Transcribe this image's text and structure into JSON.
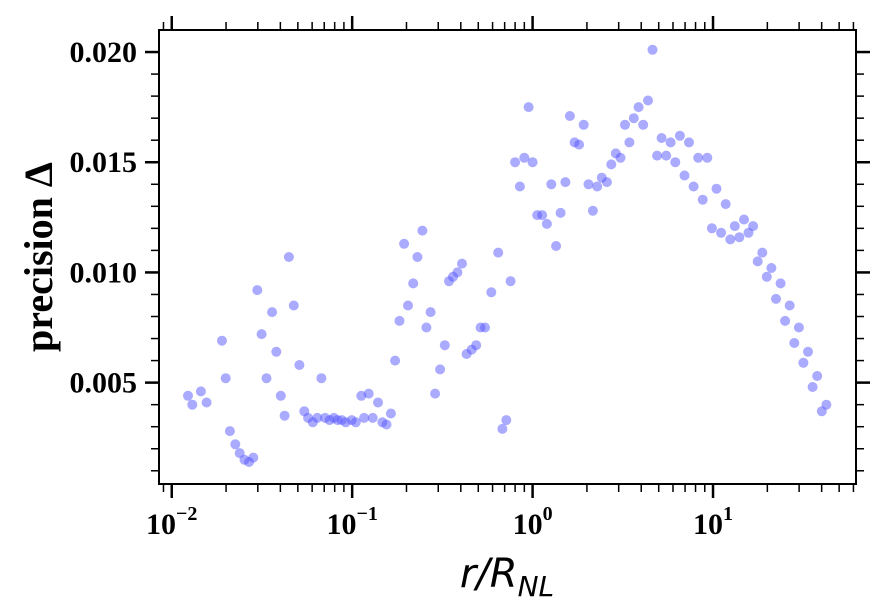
{
  "chart_data": {
    "type": "scatter",
    "xscale": "log",
    "xlim": [
      0.0085,
      62
    ],
    "ylim": [
      0.0004,
      0.021
    ],
    "grid": false,
    "legend": "none",
    "marker_color": "#5555ff",
    "marker_alpha": 0.5,
    "xlabel": {
      "main": "r/R",
      "sub": "NL"
    },
    "ylabel": "precision Δ",
    "x_ticks": [
      {
        "value": 0.01,
        "base": "10",
        "exp": "−2"
      },
      {
        "value": 0.1,
        "base": "10",
        "exp": "−1"
      },
      {
        "value": 1,
        "base": "10",
        "exp": "0"
      },
      {
        "value": 10,
        "base": "10",
        "exp": "1"
      }
    ],
    "y_ticks": [
      {
        "value": 0.005,
        "label": "0.005"
      },
      {
        "value": 0.01,
        "label": "0.010"
      },
      {
        "value": 0.015,
        "label": "0.015"
      },
      {
        "value": 0.02,
        "label": "0.020"
      }
    ],
    "points": [
      [
        0.0123,
        0.0044
      ],
      [
        0.013,
        0.004
      ],
      [
        0.0145,
        0.0046
      ],
      [
        0.0156,
        0.0041
      ],
      [
        0.019,
        0.0069
      ],
      [
        0.0199,
        0.0052
      ],
      [
        0.021,
        0.0028
      ],
      [
        0.0225,
        0.0022
      ],
      [
        0.0238,
        0.0018
      ],
      [
        0.0253,
        0.0015
      ],
      [
        0.0268,
        0.0014
      ],
      [
        0.0283,
        0.0016
      ],
      [
        0.0298,
        0.0092
      ],
      [
        0.0315,
        0.0072
      ],
      [
        0.0335,
        0.0052
      ],
      [
        0.036,
        0.0082
      ],
      [
        0.038,
        0.0064
      ],
      [
        0.0402,
        0.0044
      ],
      [
        0.0422,
        0.0035
      ],
      [
        0.0446,
        0.0107
      ],
      [
        0.0475,
        0.0085
      ],
      [
        0.051,
        0.0058
      ],
      [
        0.0543,
        0.0037
      ],
      [
        0.057,
        0.0034
      ],
      [
        0.0605,
        0.0032
      ],
      [
        0.0641,
        0.0034
      ],
      [
        0.0675,
        0.0052
      ],
      [
        0.0708,
        0.0034
      ],
      [
        0.075,
        0.0033
      ],
      [
        0.0792,
        0.0034
      ],
      [
        0.083,
        0.0033
      ],
      [
        0.0876,
        0.0033
      ],
      [
        0.0922,
        0.0032
      ],
      [
        0.0994,
        0.0033
      ],
      [
        0.1047,
        0.0032
      ],
      [
        0.1124,
        0.0044
      ],
      [
        0.1165,
        0.0034
      ],
      [
        0.1235,
        0.0045
      ],
      [
        0.13,
        0.0034
      ],
      [
        0.139,
        0.0041
      ],
      [
        0.147,
        0.0032
      ],
      [
        0.155,
        0.0031
      ],
      [
        0.164,
        0.0036
      ],
      [
        0.173,
        0.006
      ],
      [
        0.183,
        0.0078
      ],
      [
        0.194,
        0.0113
      ],
      [
        0.204,
        0.0085
      ],
      [
        0.218,
        0.0095
      ],
      [
        0.23,
        0.0107
      ],
      [
        0.245,
        0.0119
      ],
      [
        0.258,
        0.0075
      ],
      [
        0.272,
        0.0082
      ],
      [
        0.288,
        0.0045
      ],
      [
        0.307,
        0.0056
      ],
      [
        0.326,
        0.0067
      ],
      [
        0.344,
        0.0096
      ],
      [
        0.362,
        0.0098
      ],
      [
        0.383,
        0.01
      ],
      [
        0.406,
        0.0104
      ],
      [
        0.431,
        0.0063
      ],
      [
        0.46,
        0.0065
      ],
      [
        0.487,
        0.0067
      ],
      [
        0.515,
        0.0075
      ],
      [
        0.545,
        0.0075
      ],
      [
        0.59,
        0.0091
      ],
      [
        0.645,
        0.0109
      ],
      [
        0.68,
        0.0029
      ],
      [
        0.715,
        0.0033
      ],
      [
        0.755,
        0.0096
      ],
      [
        0.8,
        0.015
      ],
      [
        0.85,
        0.0139
      ],
      [
        0.9,
        0.0152
      ],
      [
        0.95,
        0.0175
      ],
      [
        1.0,
        0.015
      ],
      [
        1.06,
        0.0126
      ],
      [
        1.13,
        0.0126
      ],
      [
        1.2,
        0.0122
      ],
      [
        1.27,
        0.014
      ],
      [
        1.35,
        0.0112
      ],
      [
        1.43,
        0.0127
      ],
      [
        1.52,
        0.0141
      ],
      [
        1.61,
        0.0171
      ],
      [
        1.71,
        0.0159
      ],
      [
        1.81,
        0.0158
      ],
      [
        1.92,
        0.0167
      ],
      [
        2.04,
        0.014
      ],
      [
        2.16,
        0.0128
      ],
      [
        2.28,
        0.0139
      ],
      [
        2.42,
        0.0143
      ],
      [
        2.58,
        0.0141
      ],
      [
        2.73,
        0.0149
      ],
      [
        2.89,
        0.0154
      ],
      [
        3.07,
        0.0152
      ],
      [
        3.25,
        0.0167
      ],
      [
        3.44,
        0.0159
      ],
      [
        3.64,
        0.017
      ],
      [
        3.87,
        0.0175
      ],
      [
        4.1,
        0.0167
      ],
      [
        4.36,
        0.0178
      ],
      [
        4.62,
        0.0201
      ],
      [
        4.9,
        0.0153
      ],
      [
        5.19,
        0.0161
      ],
      [
        5.5,
        0.0153
      ],
      [
        5.82,
        0.0159
      ],
      [
        6.18,
        0.015
      ],
      [
        6.55,
        0.0162
      ],
      [
        6.95,
        0.0144
      ],
      [
        7.36,
        0.0159
      ],
      [
        7.8,
        0.0139
      ],
      [
        8.28,
        0.0152
      ],
      [
        8.77,
        0.0133
      ],
      [
        9.3,
        0.0152
      ],
      [
        9.86,
        0.012
      ],
      [
        10.45,
        0.0138
      ],
      [
        11.08,
        0.0118
      ],
      [
        11.75,
        0.0131
      ],
      [
        12.46,
        0.0115
      ],
      [
        13.2,
        0.0121
      ],
      [
        14.0,
        0.0116
      ],
      [
        14.84,
        0.0124
      ],
      [
        15.73,
        0.0118
      ],
      [
        16.68,
        0.0121
      ],
      [
        17.68,
        0.0105
      ],
      [
        18.75,
        0.0109
      ],
      [
        19.87,
        0.0098
      ],
      [
        21.06,
        0.0102
      ],
      [
        22.33,
        0.0088
      ],
      [
        23.68,
        0.0095
      ],
      [
        25.1,
        0.0078
      ],
      [
        26.6,
        0.0085
      ],
      [
        28.2,
        0.0068
      ],
      [
        29.9,
        0.0075
      ],
      [
        31.7,
        0.0059
      ],
      [
        33.6,
        0.0064
      ],
      [
        35.65,
        0.0048
      ],
      [
        37.8,
        0.0053
      ],
      [
        40.06,
        0.0037
      ],
      [
        42.47,
        0.004
      ]
    ]
  }
}
